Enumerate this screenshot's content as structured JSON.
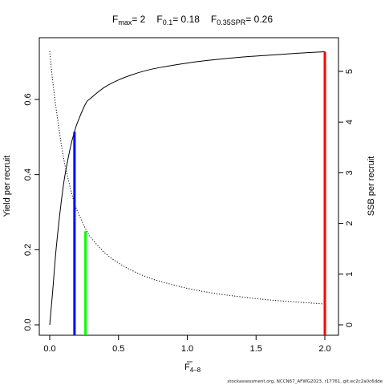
{
  "chart_data": {
    "type": "line",
    "title_parts": {
      "fmax_label": "F",
      "fmax_sub": "max",
      "fmax_value": "= 2",
      "f01_label": "F",
      "f01_sub": "0.1",
      "f01_value": "= 0.18",
      "fspr_label": "F",
      "fspr_sub": "0.35SPR",
      "fspr_value": "= 0.26"
    },
    "xlabel": "F",
    "xlabel_sub": "4–8",
    "ylabel_left": "Yield per recruit",
    "ylabel_right": "SSB per recruit",
    "xlim": [
      0,
      2
    ],
    "ylim_left": [
      0,
      0.73
    ],
    "ylim_right": [
      0,
      5.45
    ],
    "x_ticks": [
      "0.0",
      "0.5",
      "1.0",
      "1.5",
      "2.0"
    ],
    "x_tick_values": [
      0,
      0.5,
      1.0,
      1.5,
      2.0
    ],
    "y_left_ticks": [
      "0.0",
      "0.2",
      "0.4",
      "0.6"
    ],
    "y_left_tick_values": [
      0,
      0.2,
      0.4,
      0.6
    ],
    "y_right_ticks": [
      "0",
      "1",
      "2",
      "3",
      "4",
      "5"
    ],
    "y_right_tick_values": [
      0,
      1,
      2,
      3,
      4,
      5
    ],
    "series": [
      {
        "name": "Yield per recruit",
        "axis": "left",
        "style": "solid",
        "color": "#000000",
        "x": [
          0,
          0.02,
          0.05,
          0.1,
          0.15,
          0.18,
          0.2,
          0.26,
          0.3,
          0.4,
          0.5,
          0.6,
          0.7,
          0.8,
          1.0,
          1.2,
          1.4,
          1.6,
          1.8,
          2.0
        ],
        "y": [
          0,
          0.083,
          0.215,
          0.373,
          0.472,
          0.514,
          0.537,
          0.588,
          0.604,
          0.633,
          0.652,
          0.666,
          0.677,
          0.685,
          0.697,
          0.706,
          0.713,
          0.718,
          0.723,
          0.727
        ]
      },
      {
        "name": "SSB per recruit",
        "axis": "right",
        "style": "dotted",
        "color": "#000000",
        "x": [
          0,
          0.02,
          0.05,
          0.1,
          0.15,
          0.18,
          0.2,
          0.26,
          0.3,
          0.4,
          0.5,
          0.6,
          0.7,
          0.8,
          1.0,
          1.2,
          1.4,
          1.6,
          1.8,
          2.0
        ],
        "y": [
          5.4,
          4.85,
          4.2,
          3.3,
          2.7,
          2.4,
          2.25,
          1.9,
          1.72,
          1.42,
          1.22,
          1.07,
          0.95,
          0.86,
          0.72,
          0.62,
          0.55,
          0.49,
          0.45,
          0.41
        ]
      }
    ],
    "reference_lines": [
      {
        "name": "F0.1",
        "x": 0.18,
        "y_top": 0.514,
        "color": "#0000FF"
      },
      {
        "name": "F0.35SPR",
        "x": 0.26,
        "y_top": 0.249,
        "color": "#00FF00"
      },
      {
        "name": "Fmax",
        "x": 2.0,
        "y_top": 0.727,
        "color": "#FF0000"
      }
    ],
    "grid": false,
    "legend": "none"
  },
  "footer": "stockassessment.org, NCCN67_AFWG2023, r17761, git:ec2c2a0c6dde"
}
